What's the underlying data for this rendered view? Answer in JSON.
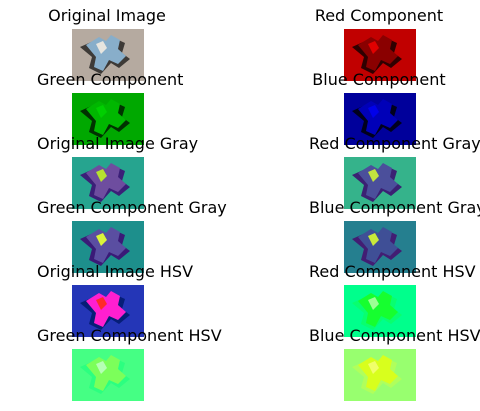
{
  "panels": [
    {
      "title": "Original Image",
      "palette": "original",
      "colors": {
        "background": "#b5aaa0",
        "shape": "#88aeca",
        "shadow": "#3d3a37",
        "accent": "#e7e5df"
      }
    },
    {
      "title": "Red Component",
      "palette": "red",
      "colors": {
        "background": "#c10000",
        "shape": "#8a0000",
        "shadow": "#2f0000",
        "accent": "#e00000"
      }
    },
    {
      "title": "Green Component",
      "palette": "green",
      "colors": {
        "background": "#00a800",
        "shape": "#00b700",
        "shadow": "#003200",
        "accent": "#00cf00"
      }
    },
    {
      "title": "Blue Component",
      "palette": "blue",
      "colors": {
        "background": "#00009b",
        "shape": "#0000b8",
        "shadow": "#00001d",
        "accent": "#0000ea"
      }
    },
    {
      "title": "Original Image Gray",
      "palette": "gray",
      "colors": {
        "background": "#26a48f",
        "shape": "#6e4d9f",
        "shadow": "#3b1f78",
        "accent": "#b6e22f"
      }
    },
    {
      "title": "Red Component Gray",
      "palette": "gray",
      "colors": {
        "background": "#35b38b",
        "shape": "#4b4f9b",
        "shadow": "#3b2173",
        "accent": "#c2e23f"
      }
    },
    {
      "title": "Green Component Gray",
      "palette": "gray",
      "colors": {
        "background": "#1d8f8c",
        "shape": "#5a4ea1",
        "shadow": "#3a1a77",
        "accent": "#dbf53a"
      }
    },
    {
      "title": "Blue Component Gray",
      "palette": "gray",
      "colors": {
        "background": "#257f8f",
        "shape": "#3f4f96",
        "shadow": "#421d73",
        "accent": "#c9ea3a"
      }
    },
    {
      "title": "Original Image HSV",
      "palette": "hsv",
      "colors": {
        "background": "#2436b7",
        "shape": "#ff1fd0",
        "shadow": "#061e77",
        "accent": "#ff2a2a"
      }
    },
    {
      "title": "Red Component HSV",
      "palette": "neon",
      "colors": {
        "background": "#00ff8c",
        "shape": "#16ff2f",
        "shadow": "#08ff6f",
        "accent": "#9cff95"
      }
    },
    {
      "title": "Green Component HSV",
      "palette": "neon",
      "colors": {
        "background": "#45ff84",
        "shape": "#7cff5a",
        "shadow": "#2cff80",
        "accent": "#b6ffb5"
      }
    },
    {
      "title": "Blue Component HSV",
      "palette": "yellowgreen",
      "colors": {
        "background": "#98ff6f",
        "shape": "#d8ff1d",
        "shadow": "#b0ff5c",
        "accent": "#f0ff6a"
      }
    }
  ]
}
